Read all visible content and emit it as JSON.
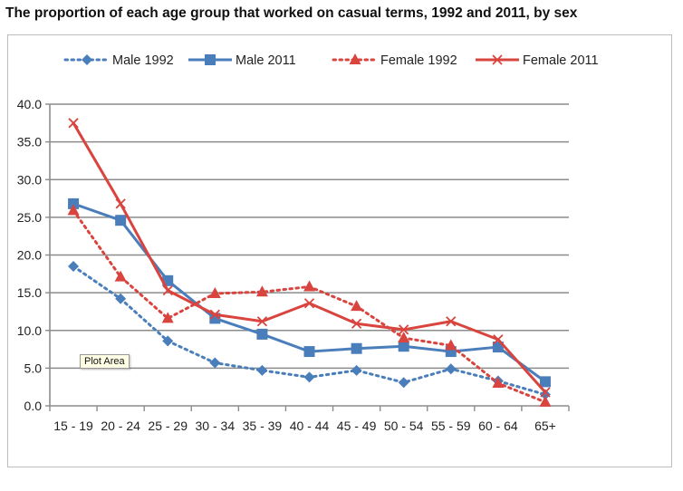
{
  "title": "The proportion of each age group that worked on casual terms, 1992 and 2011, by sex",
  "tooltip": "Plot Area",
  "chart_data": {
    "type": "line",
    "title": "The proportion of each age group that worked on casual terms, 1992 and 2011, by sex",
    "xlabel": "",
    "ylabel": "",
    "ylim": [
      0,
      40
    ],
    "yticks": [
      "0.0",
      "5.0",
      "10.0",
      "15.0",
      "20.0",
      "25.0",
      "30.0",
      "35.0",
      "40.0"
    ],
    "categories": [
      "15 - 19",
      "20 - 24",
      "25 - 29",
      "30 - 34",
      "35 - 39",
      "40 - 44",
      "45 - 49",
      "50 - 54",
      "55 - 59",
      "60 - 64",
      "65+"
    ],
    "grid": "horizontal",
    "legend": "top",
    "series": [
      {
        "name": "Male 1992",
        "color": "#4a7ebb",
        "dash": "dotted",
        "marker": "diamond",
        "values": [
          18.5,
          14.2,
          8.6,
          5.7,
          4.7,
          3.8,
          4.7,
          3.1,
          4.9,
          3.3,
          1.5
        ]
      },
      {
        "name": "Male 2011",
        "color": "#4a7ebb",
        "dash": "solid",
        "marker": "square",
        "values": [
          26.8,
          24.6,
          16.6,
          11.6,
          9.5,
          7.2,
          7.6,
          7.9,
          7.2,
          7.8,
          3.2
        ]
      },
      {
        "name": "Female 1992",
        "color": "#d9443e",
        "dash": "dotted",
        "marker": "triangle",
        "values": [
          25.9,
          17.1,
          11.6,
          14.9,
          15.1,
          15.8,
          13.2,
          9.0,
          8.0,
          3.0,
          0.5
        ]
      },
      {
        "name": "Female 2011",
        "color": "#d9443e",
        "dash": "solid",
        "marker": "x",
        "values": [
          37.5,
          26.8,
          15.3,
          12.1,
          11.2,
          13.6,
          10.9,
          10.1,
          11.2,
          8.8,
          1.8
        ]
      }
    ]
  }
}
